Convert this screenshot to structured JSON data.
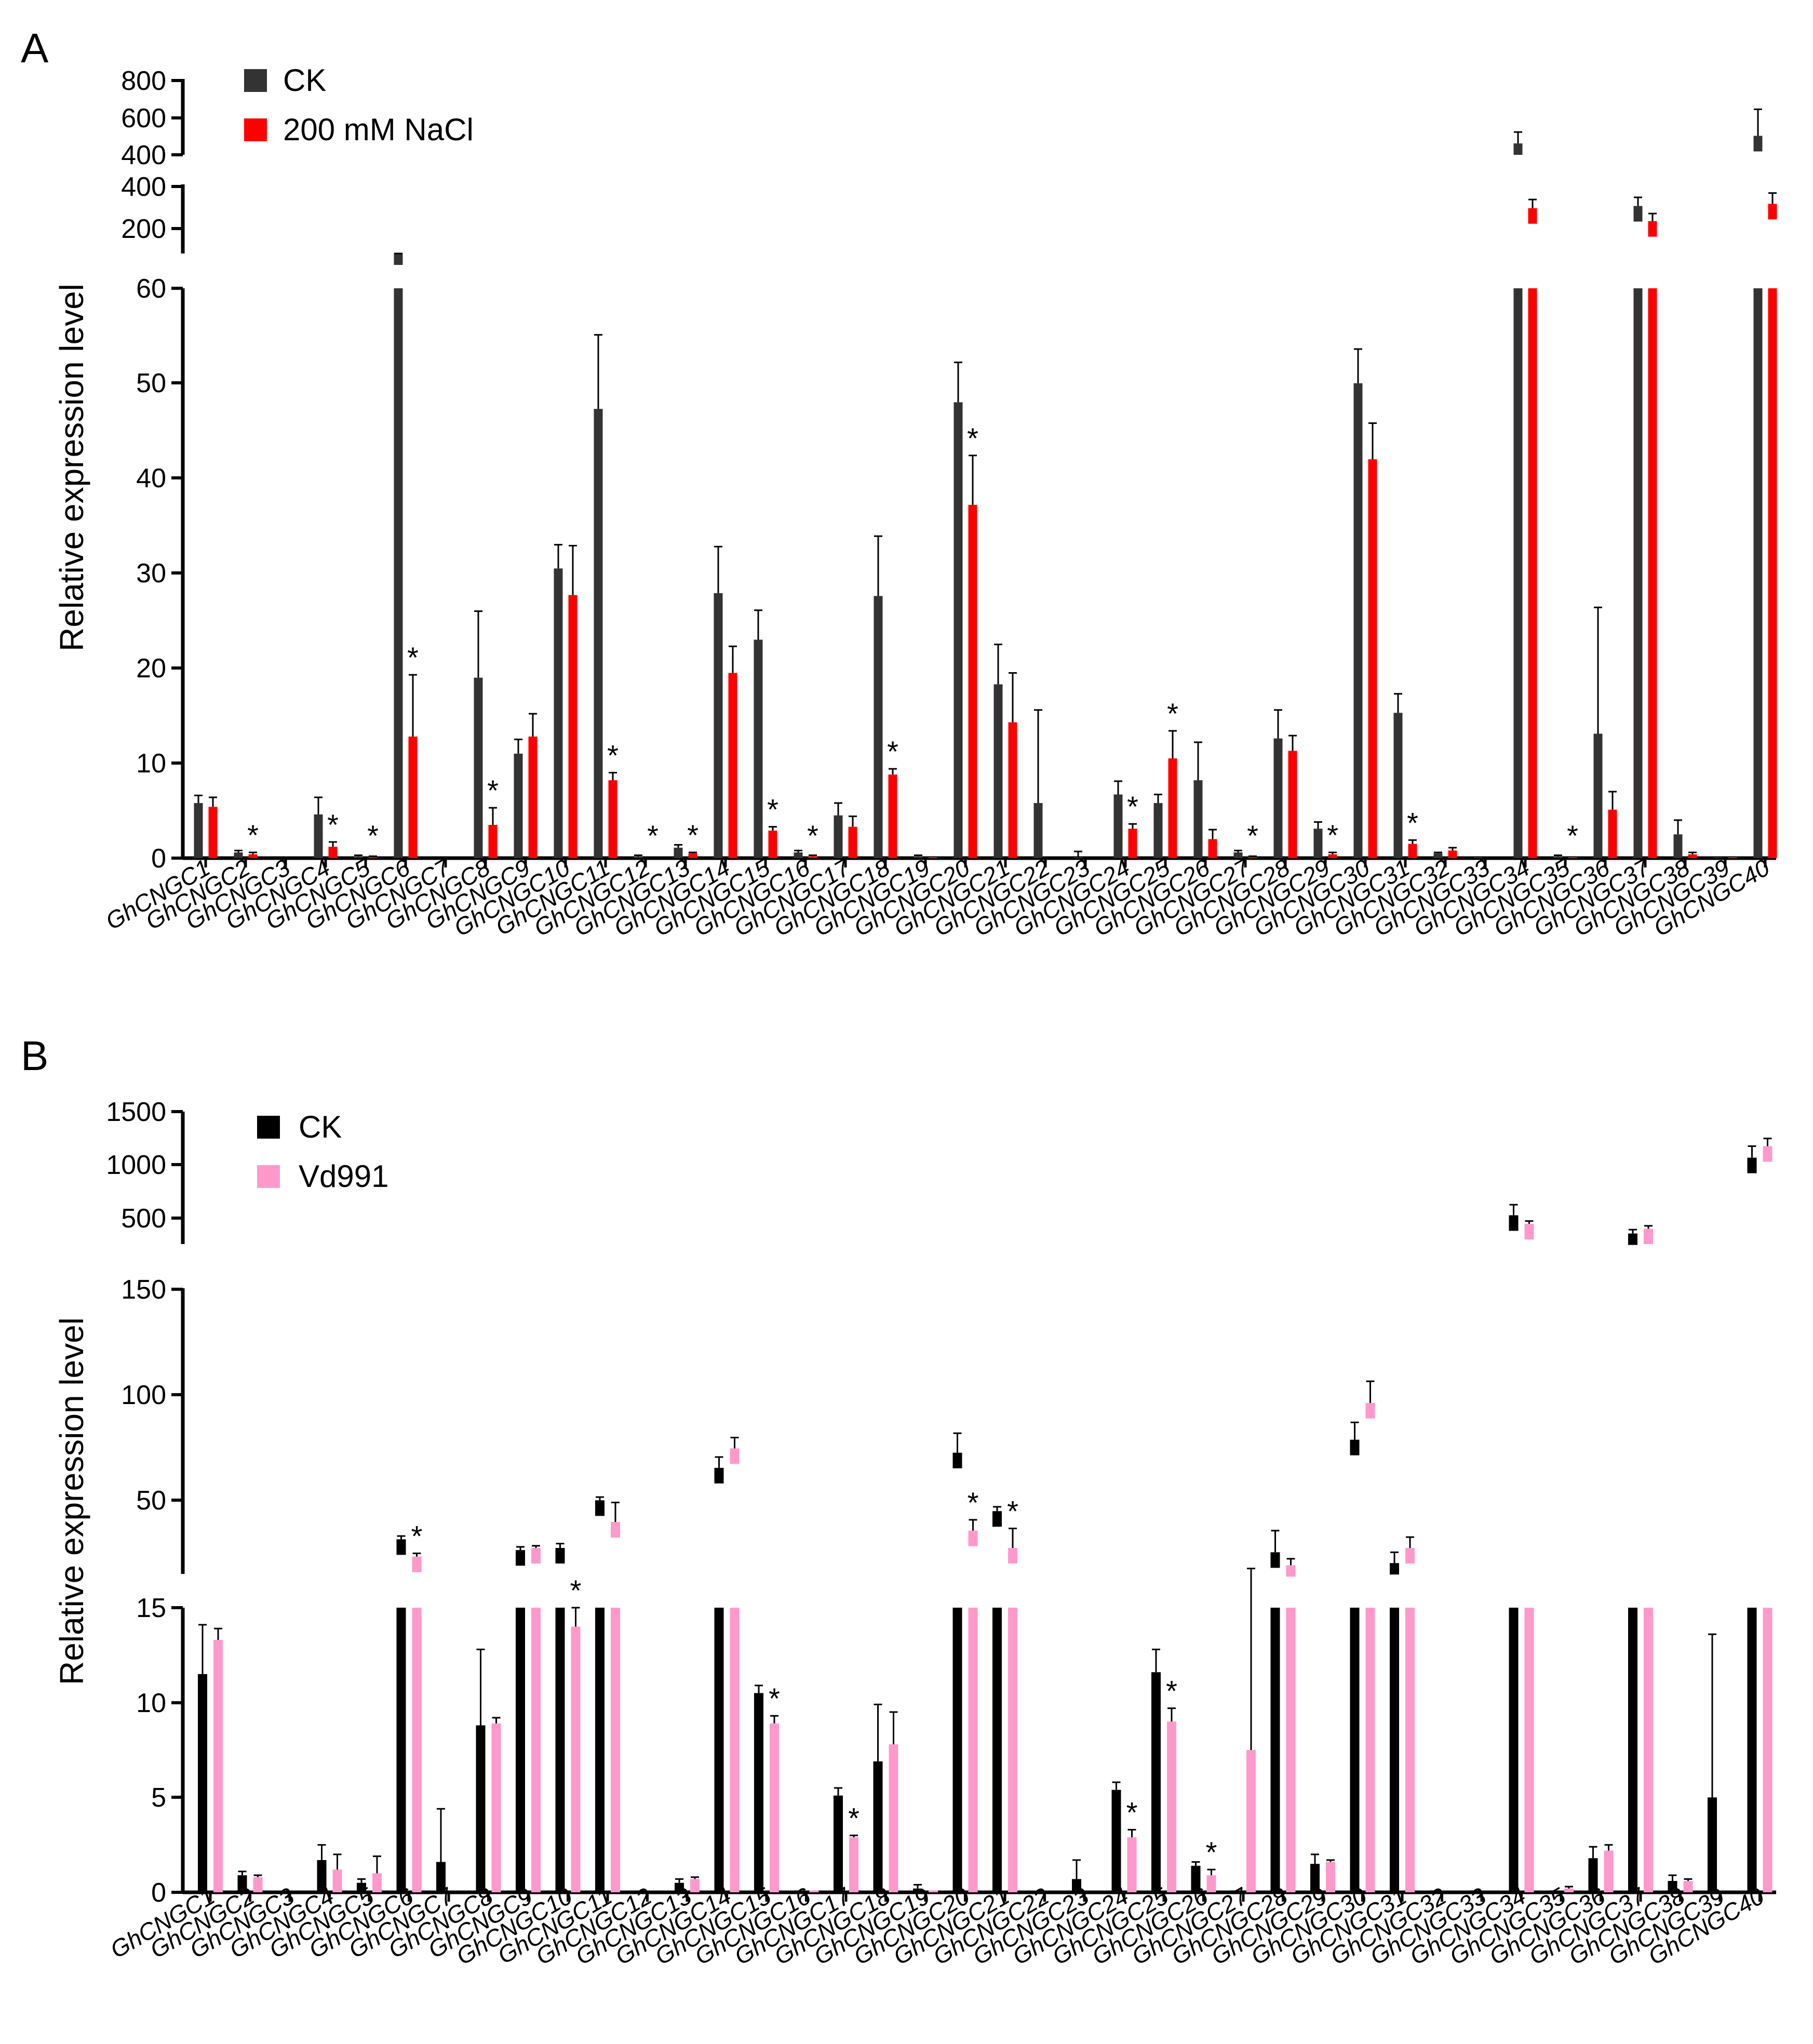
{
  "chart_data": [
    {
      "type": "bar",
      "panel_label": "A",
      "ylabel": "Relative expression level",
      "categories": [
        "GhCNGC1",
        "GhCNGC2",
        "GhCNGC3",
        "GhCNGC4",
        "GhCNGC5",
        "GhCNGC6",
        "GhCNGC7",
        "GhCNGC8",
        "GhCNGC9",
        "GhCNGC10",
        "GhCNGC11",
        "GhCNGC12",
        "GhCNGC13",
        "GhCNGC14",
        "GhCNGC15",
        "GhCNGC16",
        "GhCNGC17",
        "GhCNGC18",
        "GhCNGC19",
        "GhCNGC20",
        "GhCNGC21",
        "GhCNGC22",
        "GhCNGC23",
        "GhCNGC24",
        "GhCNGC25",
        "GhCNGC26",
        "GhCNGC27",
        "GhCNGC28",
        "GhCNGC29",
        "GhCNGC30",
        "GhCNGC31",
        "GhCNGC32",
        "GhCNGC33",
        "GhCNGC34",
        "GhCNGC35",
        "GhCNGC36",
        "GhCNGC37",
        "GhCNGC38",
        "GhCNGC39",
        "GhCNGC40"
      ],
      "series": [
        {
          "name": "CK",
          "color": "#333333",
          "values": [
            5.8,
            0.6,
            0,
            4.6,
            0.2,
            80,
            0,
            19,
            11,
            30.5,
            47.3,
            0.2,
            1.1,
            27.9,
            23,
            0.6,
            4.5,
            27.6,
            0.2,
            48,
            18.3,
            5.8,
            0.1,
            6.7,
            5.8,
            8.2,
            0.6,
            12.6,
            3.1,
            50,
            15.3,
            0.5,
            0.1,
            460,
            0.2,
            13.1,
            320,
            2.5,
            0.1,
            500
          ],
          "errors": [
            0.8,
            0.2,
            0,
            1.8,
            0.1,
            20,
            0,
            7,
            1.5,
            2.5,
            7.8,
            0.1,
            0.3,
            4.9,
            3.1,
            0.2,
            1.3,
            6.3,
            0.1,
            4.2,
            4.2,
            9.8,
            0.6,
            1.4,
            0.9,
            4,
            0.2,
            3,
            0.7,
            3.6,
            2,
            0.1,
            0,
            60,
            0.1,
            13.3,
            40,
            1.5,
            0,
            140
          ]
        },
        {
          "name": "200 mM NaCl",
          "color": "#ff0000",
          "values": [
            5.4,
            0.4,
            0,
            1.2,
            0.1,
            12.8,
            0,
            3.5,
            12.8,
            27.7,
            8.2,
            0,
            0.5,
            19.5,
            2.9,
            0.2,
            3.3,
            8.8,
            0.1,
            37.2,
            14.3,
            0,
            0,
            3.1,
            10.5,
            2,
            0.1,
            11.3,
            0.4,
            42,
            1.5,
            0.8,
            0,
            310,
            0.1,
            5.1,
            250,
            0.4,
            0.1,
            330
          ],
          "errors": [
            1,
            0.2,
            0,
            0.5,
            0.1,
            6.5,
            0,
            1.8,
            2.4,
            5.2,
            0.8,
            0,
            0.1,
            2.8,
            0.4,
            0.1,
            1.1,
            0.6,
            0,
            5.2,
            5.2,
            0,
            0,
            0.5,
            2.9,
            1,
            0.1,
            1.6,
            0.2,
            3.8,
            0.4,
            0.3,
            0,
            40,
            0,
            1.9,
            35,
            0.2,
            0,
            50
          ]
        }
      ],
      "significant": [
        2,
        4,
        5,
        6,
        8,
        11,
        12,
        13,
        15,
        16,
        18,
        20,
        24,
        25,
        27,
        29,
        31,
        35
      ],
      "axis_segments": [
        {
          "range": [
            0,
            60
          ],
          "ticks": [
            "0",
            "10",
            "20",
            "30",
            "40",
            "50",
            "60"
          ]
        },
        {
          "range": [
            100,
            420
          ],
          "ticks": [
            "200",
            "400"
          ]
        },
        {
          "range": [
            400,
            800
          ],
          "ticks": [
            "400",
            "600",
            "800"
          ]
        }
      ],
      "legend": "top-left"
    },
    {
      "type": "bar",
      "panel_label": "B",
      "ylabel": "Relative expression level",
      "categories": [
        "GhCNGC1",
        "GhCNGC2",
        "GhCNGC3",
        "GhCNGC4",
        "GhCNGC5",
        "GhCNGC6",
        "GhCNGC7",
        "GhCNGC8",
        "GhCNGC9",
        "GhCNGC10",
        "GhCNGC11",
        "GhCNGC12",
        "GhCNGC13",
        "GhCNGC14",
        "GhCNGC15",
        "GhCNGC16",
        "GhCNGC17",
        "GhCNGC18",
        "GhCNGC19",
        "GhCNGC20",
        "GhCNGC21",
        "GhCNGC22",
        "GhCNGC23",
        "GhCNGC24",
        "GhCNGC25",
        "GhCNGC26",
        "GhCNGC27",
        "GhCNGC28",
        "GhCNGC29",
        "GhCNGC30",
        "GhCNGC31",
        "GhCNGC32",
        "GhCNGC33",
        "GhCNGC34",
        "GhCNGC35",
        "GhCNGC36",
        "GhCNGC37",
        "GhCNGC38",
        "GhCNGC39",
        "GhCNGC40"
      ],
      "series": [
        {
          "name": "CK",
          "color": "#000000",
          "values": [
            11.5,
            0.9,
            0,
            1.7,
            0.5,
            34,
            1.6,
            8.8,
            29,
            30,
            52,
            0.1,
            0.5,
            67,
            10.5,
            0.1,
            5.1,
            6.9,
            0.2,
            74,
            47,
            0,
            0.7,
            5.4,
            11.6,
            1.4,
            0.1,
            28,
            1.5,
            80,
            23,
            0.1,
            0.1,
            480,
            0.1,
            1.8,
            290,
            0.6,
            5,
            1080
          ],
          "errors": [
            2.6,
            0.2,
            0,
            0.8,
            0.2,
            1.5,
            2.8,
            4,
            1.5,
            2,
            1.5,
            0,
            0.2,
            5,
            0.4,
            0,
            0.4,
            3,
            0.2,
            9,
            2,
            0,
            1,
            0.4,
            1.2,
            0.2,
            0,
            10,
            0.5,
            8,
            5,
            0,
            0,
            110,
            0,
            0.6,
            40,
            0.3,
            8.6,
            120
          ]
        },
        {
          "name": "Vd991",
          "color": "#ff99cc",
          "values": [
            13.3,
            0.8,
            0,
            1.2,
            1,
            26,
            0,
            8.9,
            30,
            14,
            42,
            0,
            0.7,
            76,
            8.9,
            0.1,
            2.9,
            7.8,
            0.1,
            38,
            30,
            0,
            0,
            2.9,
            9,
            0.9,
            7.5,
            22,
            1.6,
            97,
            30,
            0,
            0,
            390,
            0.2,
            2.2,
            340,
            0.6,
            0,
            1200
          ],
          "errors": [
            0.6,
            0.1,
            0,
            0.8,
            0.9,
            1.5,
            0,
            0.3,
            1,
            1,
            9,
            0,
            0.1,
            5,
            0.4,
            0,
            0.1,
            1.7,
            0,
            5,
            9,
            0,
            0,
            0.4,
            0.7,
            0.3,
            13,
            3,
            0.1,
            10,
            5,
            0,
            0,
            30,
            0.1,
            0.3,
            30,
            0.1,
            0,
            80
          ]
        }
      ],
      "significant": [
        6,
        10,
        15,
        17,
        20,
        21,
        24,
        25,
        26
      ],
      "axis_segments": [
        {
          "range": [
            0,
            15
          ],
          "ticks": [
            "0",
            "5",
            "10",
            "15"
          ]
        },
        {
          "range": [
            18,
            150
          ],
          "ticks": [
            "50",
            "100",
            "150"
          ]
        },
        {
          "range": [
            180,
            1560
          ],
          "ticks": [
            "500",
            "1000",
            "1500"
          ]
        }
      ],
      "legend": "top-left"
    }
  ]
}
